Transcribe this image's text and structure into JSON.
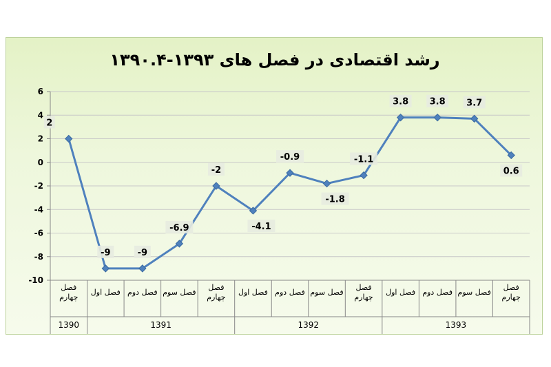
{
  "chart_data": {
    "type": "line",
    "title": "رشد اقتصادی در فصل های ۱۳۹۳-۱۳۹۰.۴",
    "categories": [
      "فصل چهارم",
      "فصل اول",
      "فصل دوم",
      "فصل سوم",
      "فصل چهارم",
      "فصل اول",
      "فصل دوم",
      "فصل سوم",
      "فصل چهارم",
      "فصل اول",
      "فصل دوم",
      "فصل سوم",
      "فصل چهارم"
    ],
    "category_lines": [
      [
        "فصل",
        "چهارم"
      ],
      [
        "فصل اول"
      ],
      [
        "فصل دوم"
      ],
      [
        "فصل سوم"
      ],
      [
        "فصل",
        "چهارم"
      ],
      [
        "فصل اول"
      ],
      [
        "فصل دوم"
      ],
      [
        "فصل سوم"
      ],
      [
        "فصل",
        "چهارم"
      ],
      [
        "فصل اول"
      ],
      [
        "فصل دوم"
      ],
      [
        "فصل سوم"
      ],
      [
        "فصل",
        "چهارم"
      ]
    ],
    "groups": [
      {
        "label": "1390",
        "start": 0,
        "end": 0
      },
      {
        "label": "1391",
        "start": 1,
        "end": 4
      },
      {
        "label": "1392",
        "start": 5,
        "end": 8
      },
      {
        "label": "1393",
        "start": 9,
        "end": 12
      }
    ],
    "values": [
      2,
      -9,
      -9,
      -6.9,
      -2,
      -4.1,
      -0.9,
      -1.8,
      -1.1,
      3.8,
      3.8,
      3.7,
      0.6
    ],
    "data_labels": [
      "2",
      "-9",
      "-9",
      "-6.9",
      "-2",
      "-4.1",
      "-0.9",
      "-1.8",
      "-1.1",
      "3.8",
      "3.8",
      "3.7",
      "0.6"
    ],
    "ylim": [
      -10,
      6
    ],
    "yticks": [
      "-10",
      "-8",
      "-6",
      "-4",
      "-2",
      "0",
      "2",
      "4",
      "6"
    ],
    "grid": "horizontal",
    "legend": "none",
    "colors": {
      "line": "#4f81bd",
      "marker": "#4f81bd",
      "grid": "#c8c8c8",
      "label_bg": "#e7ebe0"
    }
  }
}
